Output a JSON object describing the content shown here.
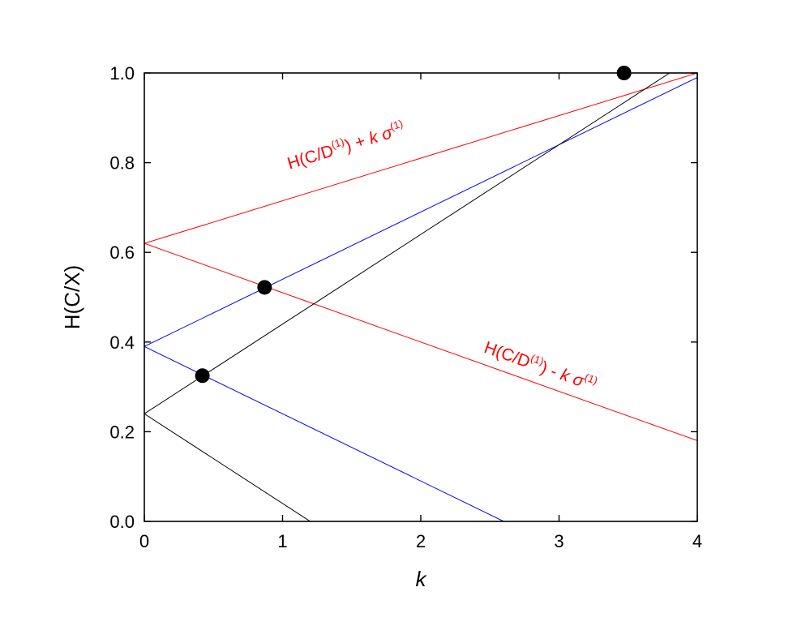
{
  "chart_data": {
    "type": "line",
    "xlabel": "k",
    "ylabel": "H(C/X)",
    "xlim": [
      0,
      4
    ],
    "ylim": [
      0,
      1.0
    ],
    "x_ticks": [
      0,
      1,
      2,
      3,
      4
    ],
    "x_tick_labels": [
      "0",
      "1",
      "2",
      "3",
      "4"
    ],
    "y_ticks": [
      0,
      0.2,
      0.4,
      0.6,
      0.8,
      1.0
    ],
    "y_tick_labels": [
      "0.0",
      "0.2",
      "0.4",
      "0.6",
      "0.8",
      "1.0"
    ],
    "grid": false,
    "legend": "none",
    "series": [
      {
        "color": "#ff0000",
        "x": [
          0,
          4
        ],
        "y": [
          0.62,
          1.0
        ]
      },
      {
        "color": "#ff0000",
        "x": [
          0,
          4
        ],
        "y": [
          0.62,
          0.18
        ]
      },
      {
        "color": "#0000ff",
        "x": [
          0,
          4
        ],
        "y": [
          0.39,
          0.99
        ]
      },
      {
        "color": "#0000ff",
        "x": [
          0,
          2.6
        ],
        "y": [
          0.39,
          0.0
        ]
      },
      {
        "color": "#000000",
        "x": [
          0,
          3.8
        ],
        "y": [
          0.24,
          1.0
        ]
      },
      {
        "color": "#000000",
        "x": [
          0,
          1.2
        ],
        "y": [
          0.24,
          0.0
        ]
      }
    ],
    "points": [
      {
        "x": 0.42,
        "y": 0.325
      },
      {
        "x": 0.87,
        "y": 0.522
      },
      {
        "x": 3.47,
        "y": 1.0
      }
    ],
    "annotations": [
      {
        "parts": [
          [
            "H(C/D",
            ""
          ],
          [
            "(1)",
            "sup"
          ],
          [
            ") + ",
            ""
          ],
          [
            "k",
            "it"
          ],
          [
            " ",
            ""
          ],
          [
            "σ",
            "it"
          ],
          [
            "(1)",
            "sup"
          ]
        ],
        "color": "#ff0000",
        "anchor_x": 1.05,
        "anchor_y": 0.785,
        "slope_along_series": 0
      },
      {
        "parts": [
          [
            "H(C/D",
            ""
          ],
          [
            "(1)",
            "sup"
          ],
          [
            ") - ",
            ""
          ],
          [
            "k",
            "it"
          ],
          [
            " ",
            ""
          ],
          [
            "σ",
            "it"
          ],
          [
            "(1)",
            "sup"
          ]
        ],
        "color": "#ff0000",
        "anchor_x": 2.45,
        "anchor_y": 0.378,
        "slope_along_series": 1
      }
    ]
  }
}
